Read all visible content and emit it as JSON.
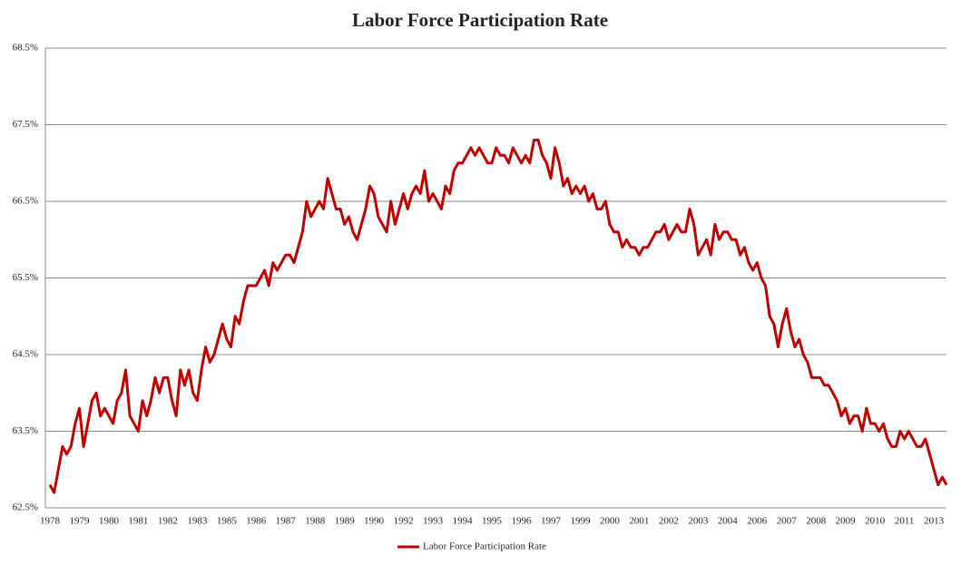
{
  "chart_data": {
    "type": "line",
    "title": "Labor Force Participation Rate",
    "categories": [
      "1978",
      null,
      null,
      null,
      null,
      null,
      null,
      "1979",
      null,
      null,
      null,
      null,
      null,
      null,
      "1980",
      null,
      null,
      null,
      null,
      null,
      null,
      "1981",
      null,
      null,
      null,
      null,
      null,
      null,
      "1982",
      null,
      null,
      null,
      null,
      null,
      null,
      "1983",
      null,
      null,
      null,
      null,
      null,
      null,
      "1985",
      null,
      null,
      null,
      null,
      null,
      null,
      "1986",
      null,
      null,
      null,
      null,
      null,
      null,
      "1987",
      null,
      null,
      null,
      null,
      null,
      null,
      "1988",
      null,
      null,
      null,
      null,
      null,
      null,
      "1989",
      null,
      null,
      null,
      null,
      null,
      null,
      "1990",
      null,
      null,
      null,
      null,
      null,
      null,
      "1992",
      null,
      null,
      null,
      null,
      null,
      null,
      "1993",
      null,
      null,
      null,
      null,
      null,
      null,
      "1994",
      null,
      null,
      null,
      null,
      null,
      null,
      "1995",
      null,
      null,
      null,
      null,
      null,
      null,
      "1996",
      null,
      null,
      null,
      null,
      null,
      null,
      "1997",
      null,
      null,
      null,
      null,
      null,
      null,
      "1999",
      null,
      null,
      null,
      null,
      null,
      null,
      "2000",
      null,
      null,
      null,
      null,
      null,
      null,
      "2001",
      null,
      null,
      null,
      null,
      null,
      null,
      "2002",
      null,
      null,
      null,
      null,
      null,
      null,
      "2003",
      null,
      null,
      null,
      null,
      null,
      null,
      "2004",
      null,
      null,
      null,
      null,
      null,
      null,
      "2006",
      null,
      null,
      null,
      null,
      null,
      null,
      "2007",
      null,
      null,
      null,
      null,
      null,
      null,
      "2008",
      null,
      null,
      null,
      null,
      null,
      null,
      "2009",
      null,
      null,
      null,
      null,
      null,
      null,
      "2010",
      null,
      null,
      null,
      null,
      null,
      null,
      "2011",
      null,
      null,
      null,
      null,
      null,
      null,
      "2013",
      null,
      null,
      null
    ],
    "series": [
      {
        "name": "Labor Force Participation Rate",
        "color": "#c00000",
        "values": [
          62.8,
          62.7,
          63.0,
          63.3,
          63.2,
          63.3,
          63.6,
          63.8,
          63.3,
          63.6,
          63.9,
          64.0,
          63.7,
          63.8,
          63.7,
          63.6,
          63.9,
          64.0,
          64.3,
          63.7,
          63.6,
          63.5,
          63.9,
          63.7,
          63.9,
          64.2,
          64.0,
          64.2,
          64.2,
          63.9,
          63.7,
          64.3,
          64.1,
          64.3,
          64.0,
          63.9,
          64.3,
          64.6,
          64.4,
          64.5,
          64.7,
          64.9,
          64.7,
          64.6,
          65.0,
          64.9,
          65.2,
          65.4,
          65.4,
          65.4,
          65.5,
          65.6,
          65.4,
          65.7,
          65.6,
          65.7,
          65.8,
          65.8,
          65.7,
          65.9,
          66.1,
          66.5,
          66.3,
          66.4,
          66.5,
          66.4,
          66.8,
          66.6,
          66.4,
          66.4,
          66.2,
          66.3,
          66.1,
          66.0,
          66.2,
          66.4,
          66.7,
          66.6,
          66.3,
          66.2,
          66.1,
          66.5,
          66.2,
          66.4,
          66.6,
          66.4,
          66.6,
          66.7,
          66.6,
          66.9,
          66.5,
          66.6,
          66.5,
          66.4,
          66.7,
          66.6,
          66.9,
          67.0,
          67.0,
          67.1,
          67.2,
          67.1,
          67.2,
          67.1,
          67.0,
          67.0,
          67.2,
          67.1,
          67.1,
          67.0,
          67.2,
          67.1,
          67.0,
          67.1,
          67.0,
          67.3,
          67.3,
          67.1,
          67.0,
          66.8,
          67.2,
          67.0,
          66.7,
          66.8,
          66.6,
          66.7,
          66.6,
          66.7,
          66.5,
          66.6,
          66.4,
          66.4,
          66.5,
          66.2,
          66.1,
          66.1,
          65.9,
          66.0,
          65.9,
          65.9,
          65.8,
          65.9,
          65.9,
          66.0,
          66.1,
          66.1,
          66.2,
          66.0,
          66.1,
          66.2,
          66.1,
          66.1,
          66.4,
          66.2,
          65.8,
          65.9,
          66.0,
          65.8,
          66.2,
          66.0,
          66.1,
          66.1,
          66.0,
          66.0,
          65.8,
          65.9,
          65.7,
          65.6,
          65.7,
          65.5,
          65.4,
          65.0,
          64.9,
          64.6,
          64.9,
          65.1,
          64.8,
          64.6,
          64.7,
          64.5,
          64.4,
          64.2,
          64.2,
          64.2,
          64.1,
          64.1,
          64.0,
          63.9,
          63.7,
          63.8,
          63.6,
          63.7,
          63.7,
          63.5,
          63.8,
          63.6,
          63.6,
          63.5,
          63.6,
          63.4,
          63.3,
          63.3,
          63.5,
          63.4,
          63.5,
          63.4,
          63.3,
          63.3,
          63.4,
          63.2,
          63.0,
          62.8,
          62.9,
          62.8
        ]
      }
    ],
    "ylim": [
      62.5,
      68.5
    ],
    "yticks": [
      {
        "value": 62.5,
        "label": "62.5%"
      },
      {
        "value": 63.5,
        "label": "63.5%"
      },
      {
        "value": 64.5,
        "label": "64.5%"
      },
      {
        "value": 65.5,
        "label": "65.5%"
      },
      {
        "value": 66.5,
        "label": "66.5%"
      },
      {
        "value": 67.5,
        "label": "67.5%"
      },
      {
        "value": 68.5,
        "label": "68.5%"
      }
    ],
    "grid": true,
    "legend": "bottom"
  }
}
